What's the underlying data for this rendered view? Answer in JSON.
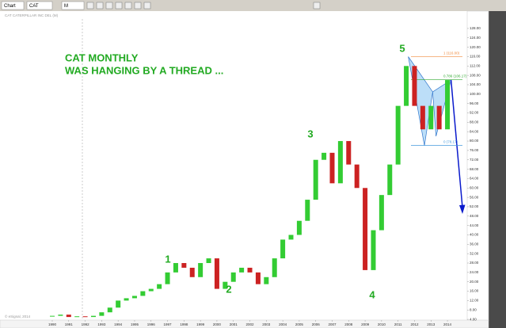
{
  "toolbar": {
    "window": "Chart",
    "symbol": "CAT",
    "interval": "M"
  },
  "chart_data": {
    "type": "candlestick",
    "header": "CAT CATERPILLAR INC DEL (M)",
    "footer": "© eSignal, 2014",
    "annotations": [
      "CAT MONTHLY",
      "WAS HANGING BY A THREAD ..."
    ],
    "wave_labels": [
      "1",
      "2",
      "3",
      "4",
      "5"
    ],
    "fib_levels": [
      {
        "value": 116,
        "label": "1 (116.00)"
      },
      {
        "value": 106.17,
        "label": "0.786 (106.17)"
      },
      {
        "value": 78.17,
        "label": "0 (78.17)"
      }
    ],
    "up_color": "#33cc33",
    "down_color": "#cc2222",
    "x": [
      1990,
      1990.5,
      1991,
      1991.5,
      1992,
      1992.5,
      1993,
      1993.5,
      1994,
      1994.5,
      1995,
      1995.5,
      1996,
      1996.5,
      1997,
      1997.5,
      1998,
      1998.5,
      1999,
      1999.5,
      2000,
      2000.5,
      2001,
      2001.5,
      2002,
      2002.5,
      2003,
      2003.5,
      2004,
      2004.5,
      2005,
      2005.5,
      2006,
      2006.5,
      2007,
      2007.5,
      2008,
      2008.5,
      2009,
      2009.5,
      2010,
      2010.5,
      2011,
      2011.5,
      2012,
      2012.5,
      2013,
      2013.5,
      2014
    ],
    "close": [
      5.5,
      6,
      5,
      5.3,
      5,
      5.5,
      7,
      9,
      12,
      13,
      14,
      16,
      17,
      19,
      24,
      28,
      26,
      22,
      28,
      30,
      17,
      20,
      24,
      26,
      24,
      19,
      22,
      30,
      38,
      40,
      46,
      55,
      72,
      75,
      62,
      80,
      70,
      60,
      25,
      42,
      57,
      70,
      95,
      112,
      95,
      85,
      95,
      85,
      106
    ],
    "xlim": [
      1989.5,
      2015.2
    ],
    "xticks": [
      1990,
      1991,
      1992,
      1993,
      1994,
      1995,
      1996,
      1997,
      1998,
      1999,
      2000,
      2001,
      2002,
      2003,
      2004,
      2005,
      2006,
      2007,
      2008,
      2009,
      2010,
      2011,
      2012,
      2013,
      2014
    ],
    "ylim": [
      2,
      130
    ],
    "yticks": [
      {
        "value": 4,
        "label": "4.00"
      },
      {
        "value": 8,
        "label": "8.00"
      },
      {
        "value": 12,
        "label": "12.00"
      },
      {
        "value": 16,
        "label": "16.00"
      },
      {
        "value": 20,
        "label": "20.00"
      },
      {
        "value": 24,
        "label": "24.00"
      },
      {
        "value": 28,
        "label": "28.00"
      },
      {
        "value": 32,
        "label": "32.00"
      },
      {
        "value": 36,
        "label": "36.00"
      },
      {
        "value": 40,
        "label": "40.00"
      },
      {
        "value": 44,
        "label": "44.00"
      },
      {
        "value": 48,
        "label": "48.00"
      },
      {
        "value": 52,
        "label": "52.00"
      },
      {
        "value": 56,
        "label": "56.00"
      },
      {
        "value": 60,
        "label": "60.00"
      },
      {
        "value": 64,
        "label": "64.00"
      },
      {
        "value": 68,
        "label": "68.00"
      },
      {
        "value": 72,
        "label": "72.00"
      },
      {
        "value": 76,
        "label": "76.00"
      },
      {
        "value": 80,
        "label": "80.00"
      },
      {
        "value": 84,
        "label": "84.00"
      },
      {
        "value": 88,
        "label": "88.00"
      },
      {
        "value": 92,
        "label": "92.00"
      },
      {
        "value": 96,
        "label": "96.00"
      },
      {
        "value": 100,
        "label": "100.00"
      },
      {
        "value": 104,
        "label": "104.00"
      },
      {
        "value": 108,
        "label": "108.00"
      },
      {
        "value": 112,
        "label": "112.00"
      },
      {
        "value": 116,
        "label": "116.00"
      },
      {
        "value": 120,
        "label": "120.00"
      },
      {
        "value": 124,
        "label": "124.00"
      },
      {
        "value": 128,
        "label": "128.00"
      }
    ]
  }
}
